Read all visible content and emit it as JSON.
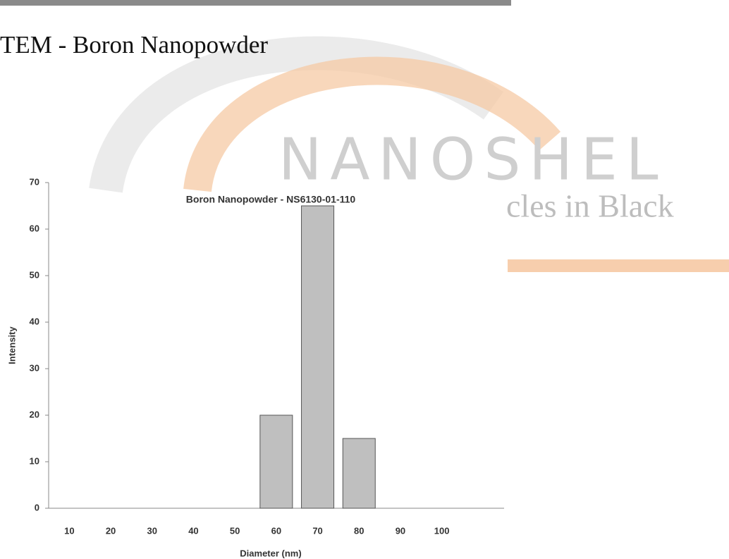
{
  "heading": "TEM - Boron Nanopowder",
  "watermark": {
    "brand": "NANOSHEL",
    "tagline": "cles in Black"
  },
  "chart_data": {
    "type": "bar",
    "title": "Boron Nanopowder - NS6130-01-110",
    "x_label": "Diameter (nm)",
    "y_label": "Intensity",
    "categories": [
      "10",
      "20",
      "30",
      "40",
      "50",
      "60",
      "70",
      "80",
      "90",
      "100"
    ],
    "values": [
      0,
      0,
      0,
      0,
      0,
      20,
      65,
      15,
      0,
      0
    ],
    "color": "#bfbfbf",
    "ylim": [
      0,
      70
    ],
    "yticks": [
      0,
      10,
      20,
      30,
      40,
      50,
      60,
      70
    ],
    "grid": false
  }
}
